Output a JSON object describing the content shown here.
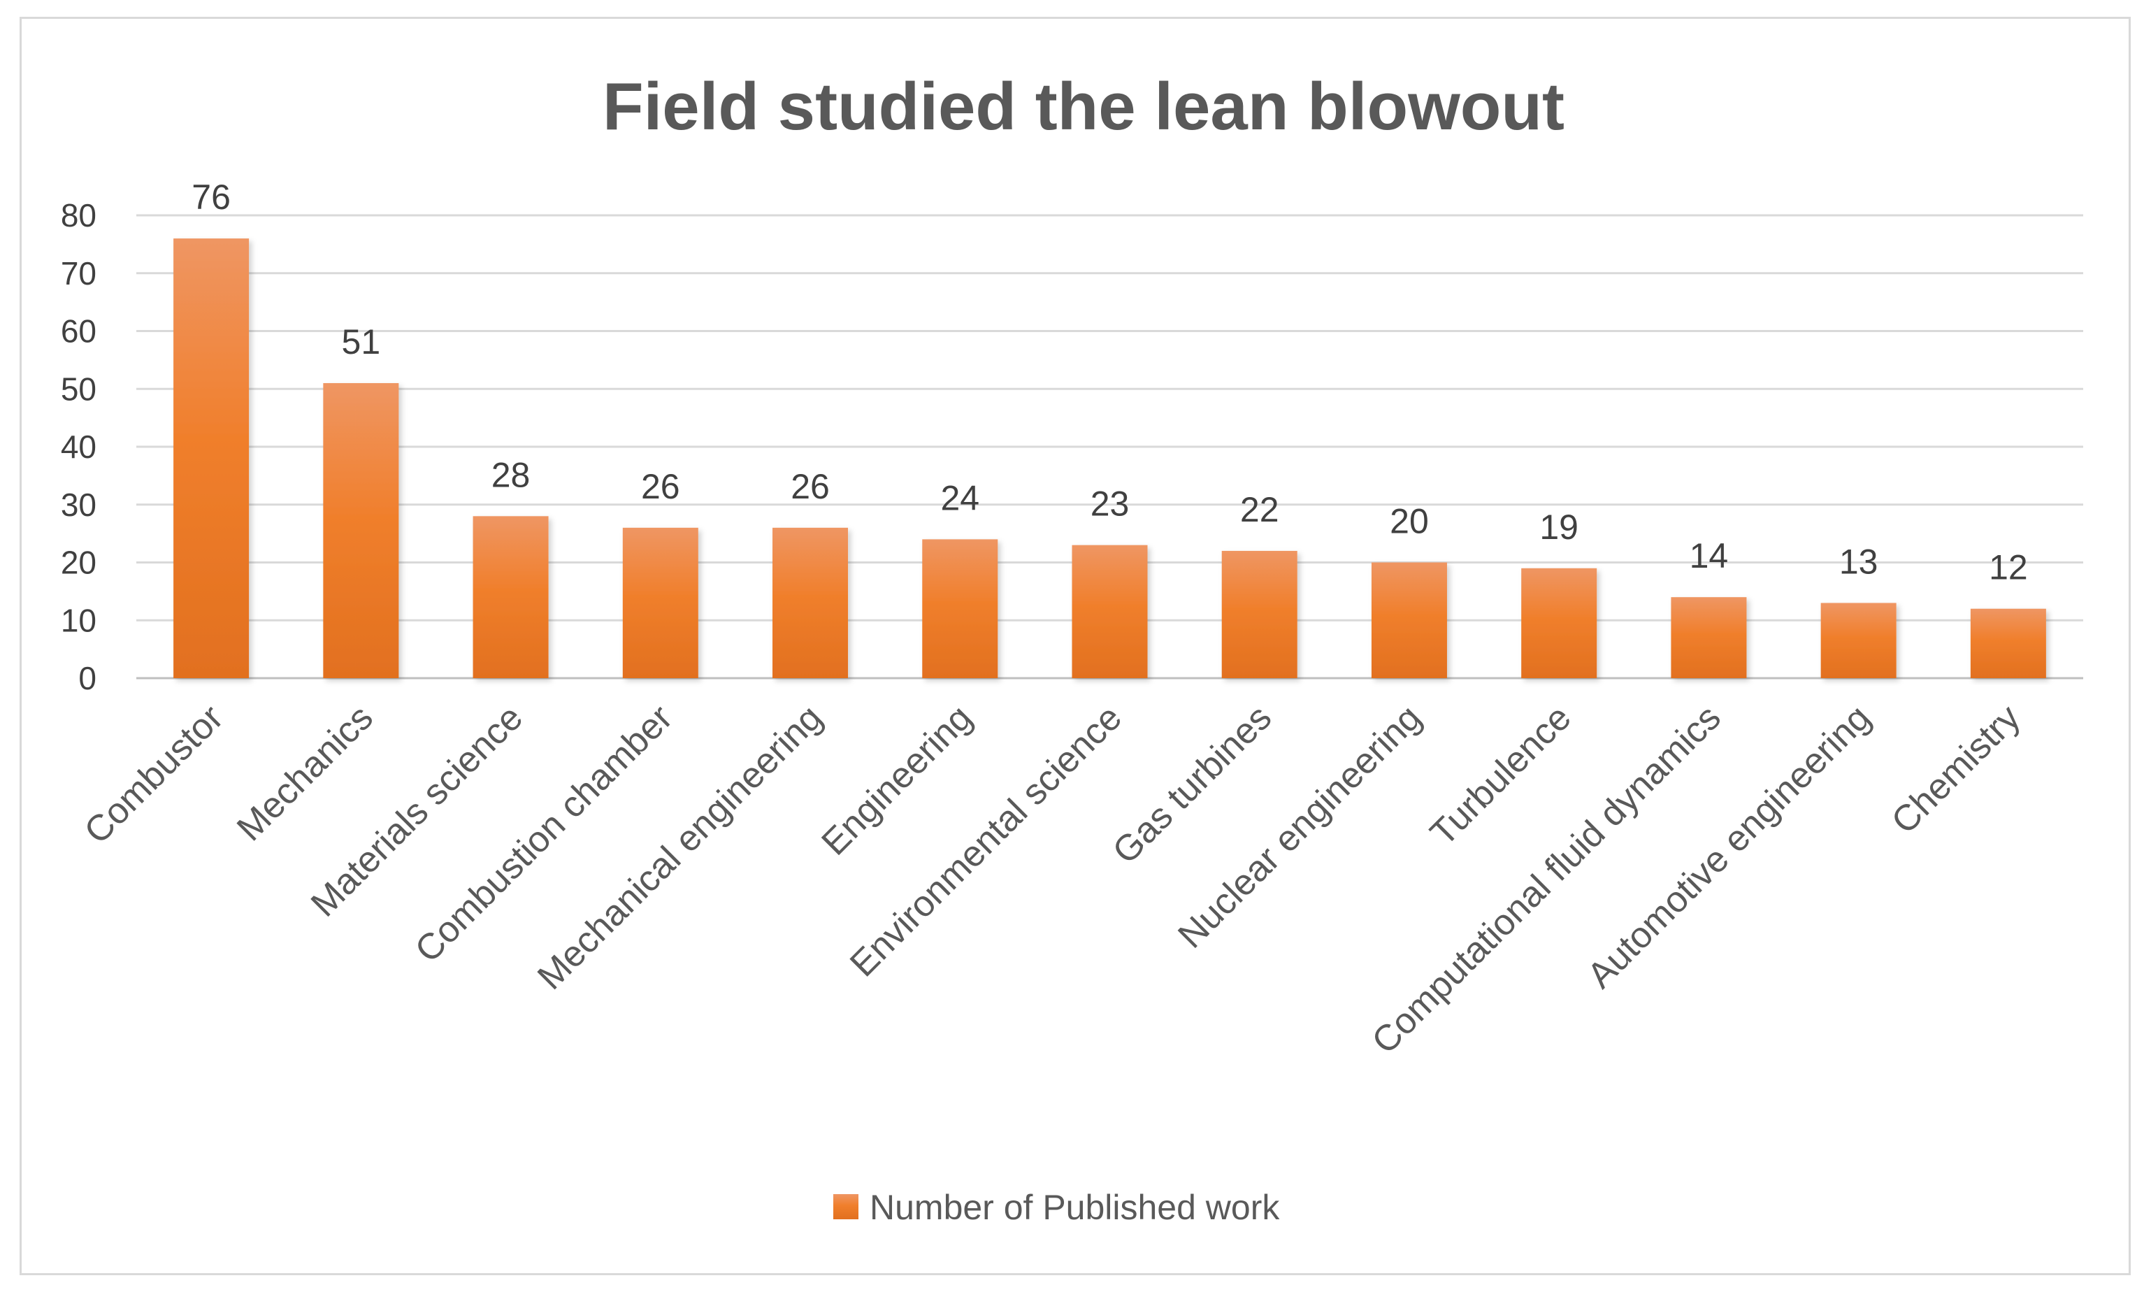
{
  "chart_data": {
    "type": "bar",
    "title": "Field studied the lean blowout",
    "xlabel": "",
    "ylabel": "",
    "categories": [
      "Combustor",
      "Mechanics",
      "Materials science",
      "Combustion chamber",
      "Mechanical engineering",
      "Engineering",
      "Environmental science",
      "Gas turbines",
      "Nuclear engineering",
      "Turbulence",
      "Computational fluid dynamics",
      "Automotive engineering",
      "Chemistry"
    ],
    "series": [
      {
        "name": "Number of Published work",
        "values": [
          76,
          51,
          28,
          26,
          26,
          24,
          23,
          22,
          20,
          19,
          14,
          13,
          12
        ],
        "color": "#ed7d31"
      }
    ],
    "ylim": [
      0,
      80
    ],
    "yticks": [
      "0",
      "10",
      "20",
      "30",
      "40",
      "50",
      "60",
      "70",
      "80"
    ],
    "data_labels": [
      "76",
      "51",
      "28",
      "26",
      "26",
      "24",
      "23",
      "22",
      "20",
      "19",
      "14",
      "13",
      "12"
    ],
    "grid": true,
    "legend": "bottom"
  }
}
